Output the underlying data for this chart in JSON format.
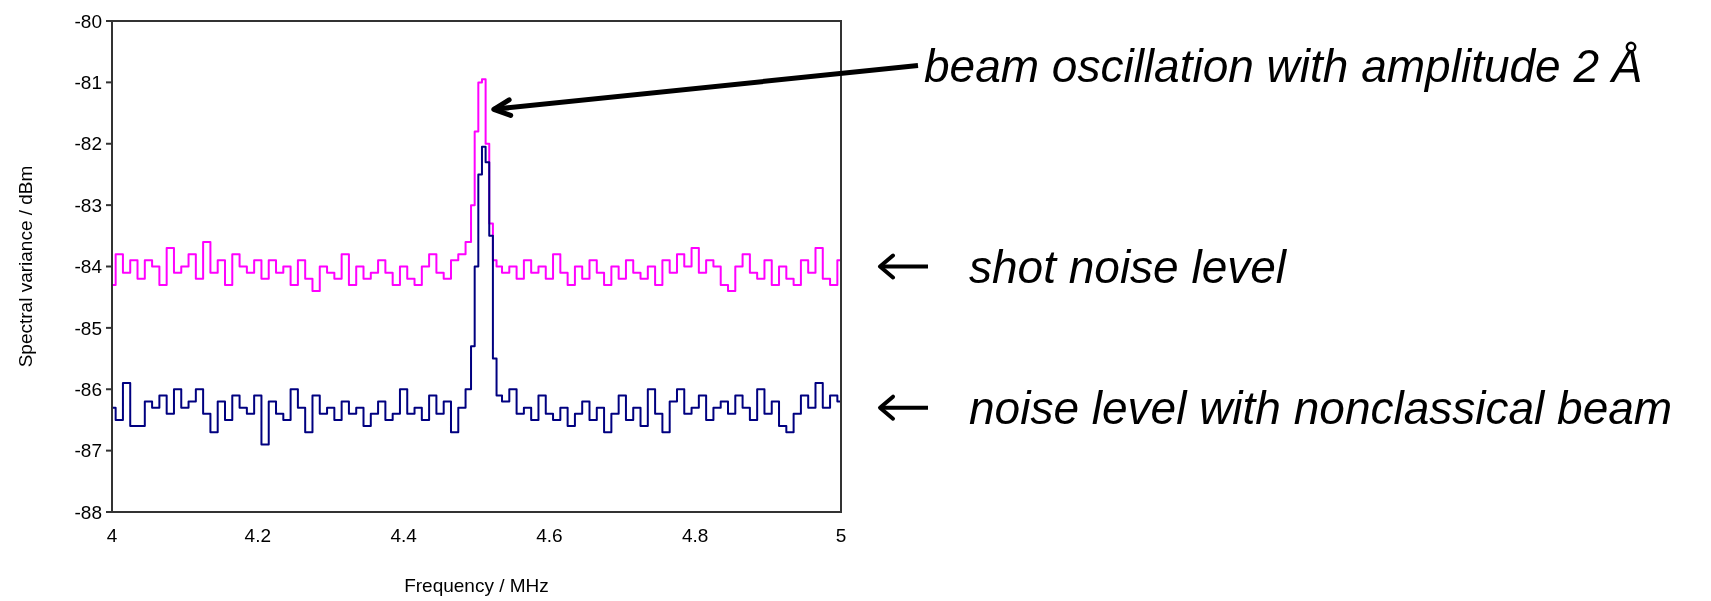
{
  "chart_data": {
    "type": "step",
    "xlabel": "Frequency / MHz",
    "ylabel": "Spectral variance / dBm",
    "xlim": [
      4,
      5
    ],
    "xticks": [
      4,
      4.2,
      4.4,
      4.6,
      4.8,
      5
    ],
    "ylim": [
      -88,
      -80
    ],
    "yticks": [
      -80,
      -81,
      -82,
      -83,
      -84,
      -85,
      -86,
      -87,
      -88
    ],
    "grid": false,
    "x": [
      4.0,
      4.01,
      4.02,
      4.03,
      4.04,
      4.05,
      4.06,
      4.07,
      4.08,
      4.09,
      4.1,
      4.11,
      4.12,
      4.13,
      4.14,
      4.15,
      4.16,
      4.17,
      4.18,
      4.19,
      4.2,
      4.21,
      4.22,
      4.23,
      4.24,
      4.25,
      4.26,
      4.27,
      4.28,
      4.29,
      4.3,
      4.31,
      4.32,
      4.33,
      4.34,
      4.35,
      4.36,
      4.37,
      4.38,
      4.39,
      4.4,
      4.41,
      4.42,
      4.43,
      4.44,
      4.45,
      4.46,
      4.47,
      4.48,
      4.49,
      4.495,
      4.5,
      4.505,
      4.51,
      4.515,
      4.52,
      4.525,
      4.53,
      4.54,
      4.55,
      4.56,
      4.57,
      4.58,
      4.59,
      4.6,
      4.61,
      4.62,
      4.63,
      4.64,
      4.65,
      4.66,
      4.67,
      4.68,
      4.69,
      4.7,
      4.71,
      4.72,
      4.73,
      4.74,
      4.75,
      4.76,
      4.77,
      4.78,
      4.79,
      4.8,
      4.81,
      4.82,
      4.83,
      4.84,
      4.85,
      4.86,
      4.87,
      4.88,
      4.89,
      4.9,
      4.91,
      4.92,
      4.93,
      4.94,
      4.95,
      4.96,
      4.97,
      4.98,
      4.99,
      5.0
    ],
    "series": [
      {
        "color": "#ff00ff",
        "values": [
          -84.3,
          -83.8,
          -84.1,
          -83.9,
          -84.2,
          -83.9,
          -84.0,
          -84.3,
          -83.7,
          -84.1,
          -84.0,
          -83.8,
          -84.2,
          -83.6,
          -84.1,
          -83.9,
          -84.3,
          -83.8,
          -84.0,
          -84.1,
          -83.9,
          -84.2,
          -83.9,
          -84.1,
          -84.0,
          -84.3,
          -83.9,
          -84.2,
          -84.4,
          -84.0,
          -84.1,
          -84.2,
          -83.8,
          -84.3,
          -84.0,
          -84.2,
          -84.1,
          -83.9,
          -84.1,
          -84.3,
          -84.0,
          -84.2,
          -84.3,
          -84.0,
          -83.8,
          -84.1,
          -84.2,
          -83.9,
          -83.8,
          -83.6,
          -83.0,
          -81.8,
          -81.0,
          -80.95,
          -82.0,
          -83.3,
          -83.9,
          -84.0,
          -84.1,
          -84.0,
          -84.2,
          -83.9,
          -84.1,
          -84.0,
          -84.2,
          -83.8,
          -84.1,
          -84.3,
          -84.0,
          -84.2,
          -83.9,
          -84.1,
          -84.3,
          -84.0,
          -84.2,
          -83.9,
          -84.1,
          -84.2,
          -84.0,
          -84.3,
          -83.9,
          -84.1,
          -83.8,
          -84.0,
          -83.7,
          -84.1,
          -83.9,
          -84.0,
          -84.3,
          -84.4,
          -84.0,
          -83.8,
          -84.1,
          -84.2,
          -83.9,
          -84.3,
          -84.0,
          -84.2,
          -84.3,
          -83.9,
          -84.1,
          -83.7,
          -84.2,
          -84.3,
          -83.9
        ]
      },
      {
        "color": "#000080",
        "values": [
          -86.3,
          -86.5,
          -85.9,
          -86.6,
          -86.6,
          -86.2,
          -86.3,
          -86.1,
          -86.4,
          -86.0,
          -86.3,
          -86.2,
          -86.0,
          -86.4,
          -86.7,
          -86.2,
          -86.5,
          -86.1,
          -86.3,
          -86.4,
          -86.1,
          -86.9,
          -86.2,
          -86.4,
          -86.5,
          -86.0,
          -86.3,
          -86.7,
          -86.1,
          -86.4,
          -86.3,
          -86.5,
          -86.2,
          -86.4,
          -86.3,
          -86.6,
          -86.4,
          -86.2,
          -86.5,
          -86.4,
          -86.0,
          -86.4,
          -86.3,
          -86.5,
          -86.1,
          -86.4,
          -86.2,
          -86.7,
          -86.3,
          -86.0,
          -85.3,
          -84.0,
          -82.5,
          -82.05,
          -82.3,
          -83.5,
          -85.5,
          -86.1,
          -86.2,
          -86.0,
          -86.4,
          -86.3,
          -86.5,
          -86.1,
          -86.4,
          -86.5,
          -86.3,
          -86.6,
          -86.4,
          -86.2,
          -86.5,
          -86.3,
          -86.7,
          -86.4,
          -86.1,
          -86.5,
          -86.3,
          -86.6,
          -86.0,
          -86.4,
          -86.7,
          -86.2,
          -86.0,
          -86.4,
          -86.3,
          -86.1,
          -86.5,
          -86.3,
          -86.2,
          -86.4,
          -86.1,
          -86.3,
          -86.5,
          -86.0,
          -86.4,
          -86.2,
          -86.6,
          -86.7,
          -86.4,
          -86.1,
          -86.3,
          -85.9,
          -86.3,
          -86.1,
          -86.2
        ]
      }
    ],
    "annotations": [
      "beam oscillation with amplitude 2 Å",
      "shot noise level",
      "noise level with nonclassical beam"
    ]
  }
}
